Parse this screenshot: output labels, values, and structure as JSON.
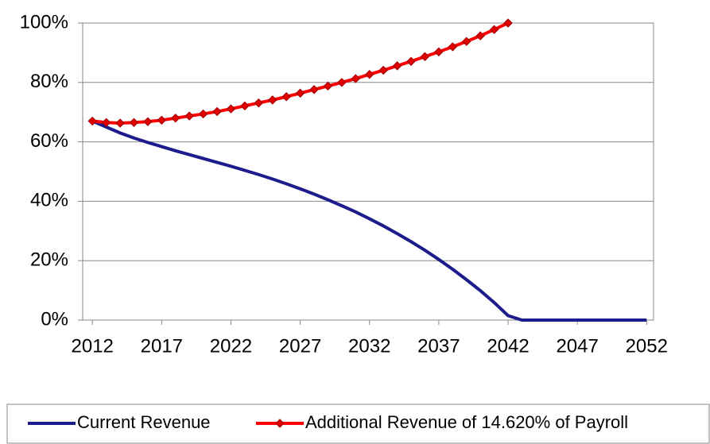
{
  "chart_data": {
    "type": "line",
    "x": [
      2012,
      2013,
      2014,
      2015,
      2016,
      2017,
      2018,
      2019,
      2020,
      2021,
      2022,
      2023,
      2024,
      2025,
      2026,
      2027,
      2028,
      2029,
      2030,
      2031,
      2032,
      2033,
      2034,
      2035,
      2036,
      2037,
      2038,
      2039,
      2040,
      2041,
      2042,
      2043,
      2044,
      2045,
      2046,
      2047,
      2048,
      2049,
      2050,
      2051,
      2052
    ],
    "series": [
      {
        "name": "Current Revenue",
        "color": "#1c1c8c",
        "marker": false,
        "values": [
          67,
          65,
          63,
          61.3,
          59.8,
          58.4,
          57,
          55.7,
          54.4,
          53.1,
          51.8,
          50.4,
          49,
          47.5,
          45.9,
          44.2,
          42.4,
          40.5,
          38.5,
          36.4,
          34.1,
          31.7,
          29.1,
          26.4,
          23.5,
          20.4,
          17.1,
          13.6,
          9.9,
          5.9,
          1.5,
          0,
          0,
          0,
          0,
          0,
          0,
          0,
          0,
          0,
          0
        ]
      },
      {
        "name": "Additional Revenue of 14.620% of Payroll",
        "color": "#ff0000",
        "marker": true,
        "values": [
          67,
          66.5,
          66.3,
          66.5,
          66.8,
          67.3,
          68,
          68.7,
          69.4,
          70.2,
          71.1,
          72.1,
          73.1,
          74.1,
          75.2,
          76.4,
          77.6,
          78.8,
          80,
          81.3,
          82.7,
          84.1,
          85.6,
          87.1,
          88.7,
          90.3,
          92,
          93.8,
          95.7,
          97.8,
          100,
          null,
          null,
          null,
          null,
          null,
          null,
          null,
          null,
          null,
          null
        ]
      }
    ],
    "xlim": [
      2011.3,
      2052.5
    ],
    "xticks": [
      2012,
      2017,
      2022,
      2027,
      2032,
      2037,
      2042,
      2047,
      2052
    ],
    "ylim": [
      0,
      100
    ],
    "yticks": [
      {
        "value": 0,
        "label": "0%"
      },
      {
        "value": 20,
        "label": "20%"
      },
      {
        "value": 40,
        "label": "40%"
      },
      {
        "value": 60,
        "label": "60%"
      },
      {
        "value": 80,
        "label": "80%"
      },
      {
        "value": 100,
        "label": "100%"
      }
    ],
    "grid": true,
    "legend": "bottom"
  }
}
